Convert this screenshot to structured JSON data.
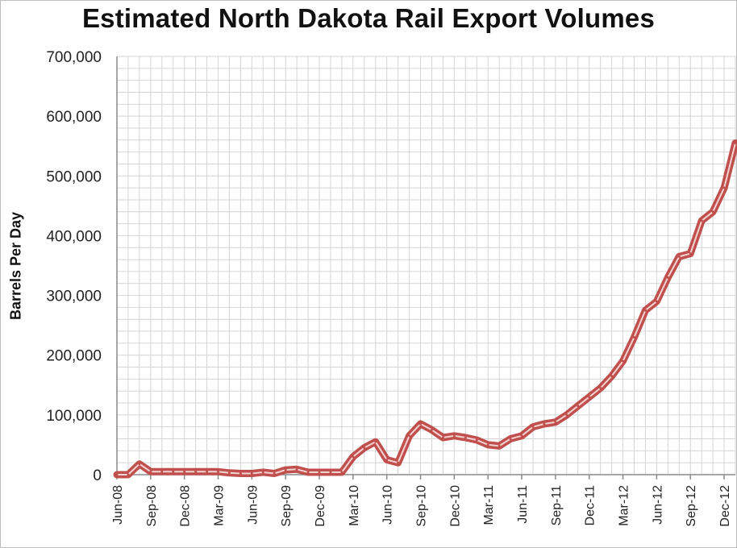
{
  "chart_data": {
    "type": "line",
    "title": "Estimated North Dakota Rail Export Volumes",
    "xlabel": "",
    "ylabel": "Barrels Per Day",
    "ylim": [
      0,
      700000
    ],
    "y_ticks": [
      "0",
      "100,000",
      "200,000",
      "300,000",
      "400,000",
      "500,000",
      "600,000",
      "700,000"
    ],
    "x_ticks": [
      "Jun-08",
      "Sep-08",
      "Dec-08",
      "Mar-09",
      "Jun-09",
      "Sep-09",
      "Dec-09",
      "Mar-10",
      "Jun-10",
      "Sep-10",
      "Dec-10",
      "Mar-11",
      "Jun-11",
      "Sep-11",
      "Dec-11",
      "Mar-12",
      "Jun-12",
      "Sep-12",
      "Dec-12"
    ],
    "grid": true,
    "legend": "none",
    "line_color": "#c0504d",
    "series": [
      {
        "x": [
          "Jun-08",
          "Jul-08",
          "Aug-08",
          "Sep-08",
          "Oct-08",
          "Nov-08",
          "Dec-08",
          "Jan-09",
          "Feb-09",
          "Mar-09",
          "Apr-09",
          "May-09",
          "Jun-09",
          "Jul-09",
          "Aug-09",
          "Sep-09",
          "Oct-09",
          "Nov-09",
          "Dec-09",
          "Jan-10",
          "Feb-10",
          "Mar-10",
          "Apr-10",
          "May-10",
          "Jun-10",
          "Jul-10",
          "Aug-10",
          "Sep-10",
          "Oct-10",
          "Nov-10",
          "Dec-10",
          "Jan-11",
          "Feb-11",
          "Mar-11",
          "Apr-11",
          "May-11",
          "Jun-11",
          "Jul-11",
          "Aug-11",
          "Sep-11",
          "Oct-11",
          "Nov-11",
          "Dec-11",
          "Jan-12",
          "Feb-12",
          "Mar-12",
          "Apr-12",
          "May-12",
          "Jun-12",
          "Jul-12",
          "Aug-12",
          "Sep-12",
          "Oct-12",
          "Nov-12",
          "Dec-12",
          "Jan-13"
        ],
        "values": [
          0,
          0,
          18000,
          5000,
          5000,
          5000,
          5000,
          5000,
          5000,
          5000,
          3000,
          2000,
          2000,
          4000,
          2000,
          8000,
          9000,
          4000,
          4000,
          4000,
          4000,
          30000,
          45000,
          55000,
          25000,
          20000,
          65000,
          85000,
          75000,
          62000,
          65000,
          62000,
          58000,
          50000,
          48000,
          60000,
          65000,
          80000,
          85000,
          88000,
          100000,
          115000,
          130000,
          145000,
          165000,
          190000,
          230000,
          275000,
          290000,
          330000,
          365000,
          370000,
          425000,
          440000,
          480000,
          555000
        ]
      }
    ]
  }
}
